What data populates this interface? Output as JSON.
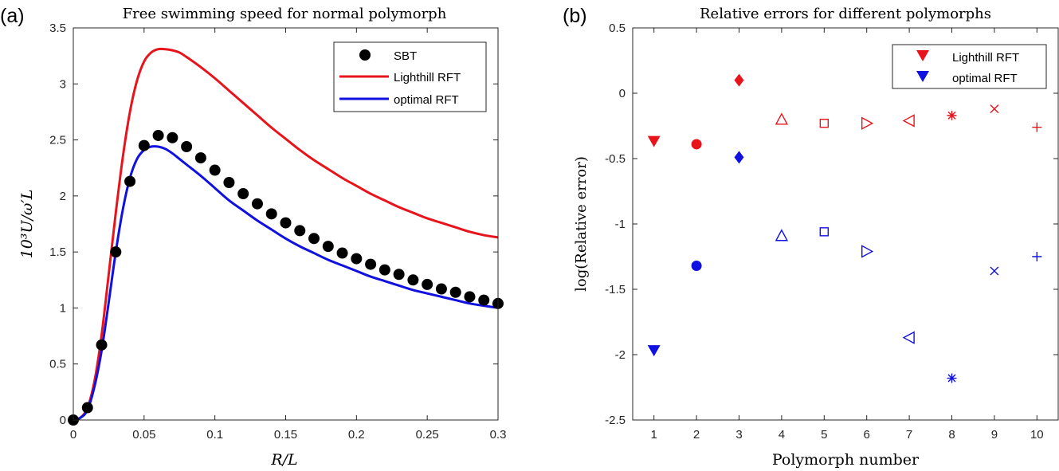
{
  "chart_data": [
    {
      "type": "line",
      "panel_label": "(a)",
      "title": "Free swimming speed for normal polymorph",
      "xlabel": "R/L",
      "ylabel": "10³U/ω′L",
      "xlim": [
        0,
        0.3
      ],
      "ylim": [
        0,
        3.5
      ],
      "xticks": [
        0,
        0.05,
        0.1,
        0.15,
        0.2,
        0.25,
        0.3
      ],
      "xtick_labels": [
        "0",
        "0.05",
        "0.1",
        "0.15",
        "0.2",
        "0.25",
        "0.3"
      ],
      "yticks": [
        0,
        0.5,
        1,
        1.5,
        2,
        2.5,
        3,
        3.5
      ],
      "ytick_labels": [
        "0",
        "0.5",
        "1",
        "1.5",
        "2",
        "2.5",
        "3",
        "3.5"
      ],
      "legend_position": "top-right",
      "grid": false,
      "series": [
        {
          "name": "SBT",
          "style": "markers",
          "marker": "circle-filled",
          "color": "#000000",
          "x": [
            0,
            0.01,
            0.02,
            0.03,
            0.04,
            0.05,
            0.06,
            0.07,
            0.08,
            0.09,
            0.1,
            0.11,
            0.12,
            0.13,
            0.14,
            0.15,
            0.16,
            0.17,
            0.18,
            0.19,
            0.2,
            0.21,
            0.22,
            0.23,
            0.24,
            0.25,
            0.26,
            0.27,
            0.28,
            0.29,
            0.3
          ],
          "y": [
            0,
            0.11,
            0.67,
            1.5,
            2.13,
            2.45,
            2.54,
            2.52,
            2.44,
            2.34,
            2.23,
            2.12,
            2.02,
            1.93,
            1.84,
            1.76,
            1.69,
            1.62,
            1.55,
            1.49,
            1.44,
            1.39,
            1.34,
            1.3,
            1.25,
            1.21,
            1.17,
            1.14,
            1.1,
            1.07,
            1.04
          ]
        },
        {
          "name": "Lighthill RFT",
          "style": "line",
          "color": "#e8141c",
          "x": [
            0,
            0.005,
            0.01,
            0.015,
            0.02,
            0.025,
            0.03,
            0.035,
            0.04,
            0.045,
            0.05,
            0.055,
            0.06,
            0.065,
            0.07,
            0.075,
            0.08,
            0.09,
            0.1,
            0.11,
            0.12,
            0.13,
            0.14,
            0.15,
            0.16,
            0.17,
            0.18,
            0.19,
            0.2,
            0.21,
            0.22,
            0.23,
            0.24,
            0.25,
            0.26,
            0.27,
            0.28,
            0.29,
            0.3
          ],
          "y": [
            0,
            0.02,
            0.11,
            0.35,
            0.76,
            1.3,
            1.85,
            2.35,
            2.75,
            3.03,
            3.2,
            3.28,
            3.31,
            3.31,
            3.3,
            3.28,
            3.24,
            3.15,
            3.05,
            2.94,
            2.83,
            2.72,
            2.61,
            2.51,
            2.41,
            2.32,
            2.24,
            2.16,
            2.09,
            2.02,
            1.96,
            1.9,
            1.85,
            1.8,
            1.76,
            1.72,
            1.68,
            1.65,
            1.63
          ]
        },
        {
          "name": "optimal RFT",
          "style": "line",
          "color": "#1010e0",
          "x": [
            0,
            0.005,
            0.01,
            0.015,
            0.02,
            0.025,
            0.03,
            0.035,
            0.04,
            0.045,
            0.05,
            0.055,
            0.06,
            0.065,
            0.07,
            0.075,
            0.08,
            0.09,
            0.1,
            0.11,
            0.12,
            0.13,
            0.14,
            0.15,
            0.16,
            0.17,
            0.18,
            0.19,
            0.2,
            0.21,
            0.22,
            0.23,
            0.24,
            0.25,
            0.26,
            0.27,
            0.28,
            0.29,
            0.3
          ],
          "y": [
            0,
            0.02,
            0.09,
            0.3,
            0.62,
            1.05,
            1.5,
            1.88,
            2.16,
            2.33,
            2.41,
            2.44,
            2.44,
            2.42,
            2.38,
            2.33,
            2.28,
            2.18,
            2.07,
            1.96,
            1.87,
            1.78,
            1.7,
            1.62,
            1.55,
            1.49,
            1.43,
            1.38,
            1.33,
            1.28,
            1.24,
            1.2,
            1.16,
            1.13,
            1.1,
            1.07,
            1.04,
            1.02,
            1
          ]
        }
      ]
    },
    {
      "type": "scatter",
      "panel_label": "(b)",
      "title": "Relative errors for different polymorphs",
      "xlabel": "Polymorph number",
      "ylabel": "log(Relative error)",
      "xlim": [
        0.5,
        10.5
      ],
      "ylim": [
        -2.5,
        0.5
      ],
      "xticks": [
        1,
        2,
        3,
        4,
        5,
        6,
        7,
        8,
        9,
        10
      ],
      "xtick_labels": [
        "1",
        "2",
        "3",
        "4",
        "5",
        "6",
        "7",
        "8",
        "9",
        "10"
      ],
      "yticks": [
        -2.5,
        -2,
        -1.5,
        -1,
        -0.5,
        0,
        0.5
      ],
      "ytick_labels": [
        "-2.5",
        "-2",
        "-1.5",
        "-1",
        "-0.5",
        "0",
        "0.5"
      ],
      "legend_position": "top-right",
      "legend_marker": "triangle-down-filled",
      "grid": false,
      "series": [
        {
          "name": "Lighthill RFT",
          "color": "#e8141c",
          "x": [
            1,
            2,
            3,
            4,
            5,
            6,
            7,
            8,
            9,
            10
          ],
          "y": [
            -0.37,
            -0.39,
            0.1,
            -0.2,
            -0.23,
            -0.23,
            -0.21,
            -0.17,
            -0.12,
            -0.26
          ],
          "markers": [
            "triangle-down-filled",
            "circle-filled",
            "diamond-filled",
            "triangle-up",
            "square",
            "triangle-right",
            "triangle-left",
            "asterisk",
            "x",
            "plus"
          ]
        },
        {
          "name": "optimal RFT",
          "color": "#1010e0",
          "x": [
            1,
            2,
            3,
            4,
            5,
            6,
            7,
            8,
            9,
            10
          ],
          "y": [
            -1.97,
            -1.32,
            -0.49,
            -1.09,
            -1.06,
            -1.21,
            -1.87,
            -2.18,
            -1.36,
            -1.25
          ],
          "markers": [
            "triangle-down-filled",
            "circle-filled",
            "diamond-filled",
            "triangle-up",
            "square",
            "triangle-right",
            "triangle-left",
            "asterisk",
            "x",
            "plus"
          ]
        }
      ]
    }
  ]
}
